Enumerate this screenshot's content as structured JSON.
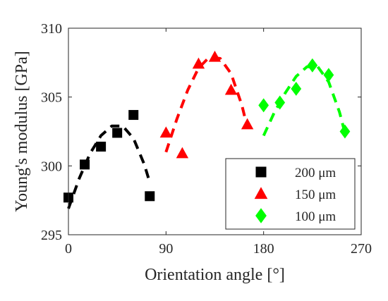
{
  "chart_data": {
    "type": "scatter",
    "xlabel": "Orientation angle [°]",
    "ylabel": "Young's modulus [GPa]",
    "xlim": [
      0,
      270
    ],
    "ylim": [
      295,
      310
    ],
    "xticks": [
      0,
      90,
      180,
      270
    ],
    "xtick_labels": [
      "0",
      "90",
      "180",
      "270"
    ],
    "yticks": [
      295,
      300,
      305,
      310
    ],
    "ytick_labels": [
      "295",
      "300",
      "305",
      "310"
    ],
    "grid": false,
    "legend_position": "bottom-right",
    "series": [
      {
        "name": "200 μm",
        "marker": "square",
        "color": "#000000",
        "points": [
          [
            0,
            297.7
          ],
          [
            15,
            300.1
          ],
          [
            30,
            301.4
          ],
          [
            45,
            302.4
          ],
          [
            60,
            303.7
          ],
          [
            75,
            297.8
          ]
        ],
        "fit": [
          [
            0,
            296.9
          ],
          [
            10,
            299.1
          ],
          [
            20,
            300.9
          ],
          [
            30,
            302.2
          ],
          [
            40,
            302.9
          ],
          [
            50,
            302.9
          ],
          [
            60,
            302.0
          ],
          [
            70,
            300.1
          ],
          [
            75,
            298.8
          ]
        ]
      },
      {
        "name": "150 μm",
        "marker": "triangle",
        "color": "#ff0000",
        "points": [
          [
            90,
            302.4
          ],
          [
            105,
            300.9
          ],
          [
            120,
            307.4
          ],
          [
            135,
            307.9
          ],
          [
            150,
            305.5
          ],
          [
            165,
            303.0
          ]
        ],
        "fit": [
          [
            90,
            301.0
          ],
          [
            100,
            303.4
          ],
          [
            110,
            305.5
          ],
          [
            120,
            307.1
          ],
          [
            130,
            307.9
          ],
          [
            140,
            307.8
          ],
          [
            150,
            306.7
          ],
          [
            160,
            304.4
          ],
          [
            165,
            302.8
          ]
        ]
      },
      {
        "name": "100 μm",
        "marker": "diamond",
        "color": "#00ff00",
        "points": [
          [
            180,
            304.4
          ],
          [
            195,
            304.6
          ],
          [
            210,
            305.6
          ],
          [
            225,
            307.3
          ],
          [
            240,
            306.6
          ],
          [
            255,
            302.5
          ]
        ],
        "fit": [
          [
            180,
            302.2
          ],
          [
            190,
            303.9
          ],
          [
            200,
            305.3
          ],
          [
            210,
            306.5
          ],
          [
            220,
            307.2
          ],
          [
            230,
            307.2
          ],
          [
            240,
            306.1
          ],
          [
            250,
            303.9
          ],
          [
            255,
            302.4
          ]
        ]
      }
    ]
  }
}
